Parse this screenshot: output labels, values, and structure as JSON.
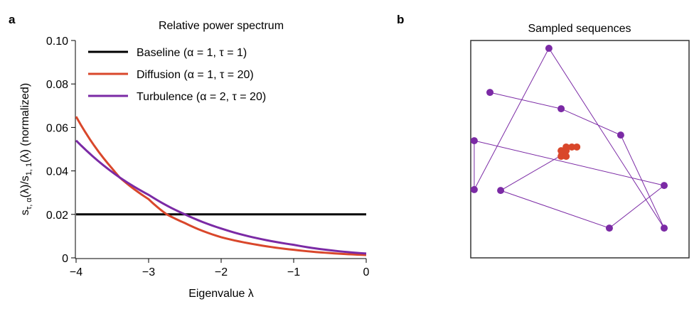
{
  "panel_a_label": "a",
  "panel_b_label": "b",
  "chart_data": [
    {
      "type": "line",
      "title": "Relative power spectrum",
      "xlabel": "Eigenvalue λ",
      "ylabel": "s_{τ,α}(λ)/s_{1,1}(λ) (normalized)",
      "ylabel_parts": {
        "main": "s",
        "sub1": "τ, α",
        "mid": "(λ)/s",
        "sub2": "1, 1",
        "end": "(λ) (normalized)"
      },
      "xlim": [
        -4,
        0
      ],
      "ylim": [
        0,
        0.1
      ],
      "xticks": [
        -4,
        -3,
        -2,
        -1,
        0
      ],
      "xtick_labels": [
        "−4",
        "−3",
        "−2",
        "−1",
        "0"
      ],
      "yticks": [
        0,
        0.02,
        0.04,
        0.06,
        0.08,
        0.1
      ],
      "ytick_labels": [
        "0",
        "0.02",
        "0.04",
        "0.06",
        "0.08",
        "0.10"
      ],
      "legend_position": "top-left",
      "series": [
        {
          "name": "Baseline (α = 1, τ = 1)",
          "color": "#000000",
          "x": [
            -4,
            0
          ],
          "y": [
            0.02,
            0.02
          ]
        },
        {
          "name": "Diffusion (α = 1, τ = 20)",
          "color": "#d9472b",
          "x": [
            -4,
            -3.5,
            -3.4,
            -3,
            -2.75,
            -2.5,
            -2,
            -1.5,
            -1,
            -0.5,
            0
          ],
          "y": [
            0.065,
            0.041,
            0.037,
            0.027,
            0.02,
            0.016,
            0.0095,
            0.006,
            0.0037,
            0.0022,
            0.0013
          ]
        },
        {
          "name": "Turbulence (α = 2, τ = 20)",
          "color": "#7b2aa5",
          "x": [
            -4,
            -3.4,
            -3,
            -2.5,
            -2,
            -1.5,
            -1,
            -0.5,
            0
          ],
          "y": [
            0.054,
            0.037,
            0.029,
            0.02,
            0.0135,
            0.009,
            0.006,
            0.0035,
            0.002
          ]
        }
      ]
    },
    {
      "type": "scatter",
      "title": "Sampled sequences",
      "xlim": [
        0,
        1
      ],
      "ylim": [
        0,
        1
      ],
      "series": [
        {
          "name": "Turbulence",
          "color": "#7b2aa5",
          "connected": true,
          "x": [
            0.088,
            0.414,
            0.687,
            0.886,
            0.358,
            0.016,
            0.016,
            0.886,
            0.635,
            0.137
          ],
          "y": [
            0.761,
            0.686,
            0.565,
            0.137,
            0.964,
            0.314,
            0.539,
            0.333,
            0.137,
            0.31
          ],
          "path_end": [
            0.407,
            0.467
          ]
        },
        {
          "name": "Diffusion",
          "color": "#d9472b",
          "connected": false,
          "x": [
            0.417,
            0.437,
            0.463,
            0.486,
            0.414,
            0.437,
            0.414,
            0.437
          ],
          "y": [
            0.474,
            0.51,
            0.51,
            0.51,
            0.493,
            0.493,
            0.467,
            0.467
          ]
        }
      ]
    }
  ]
}
